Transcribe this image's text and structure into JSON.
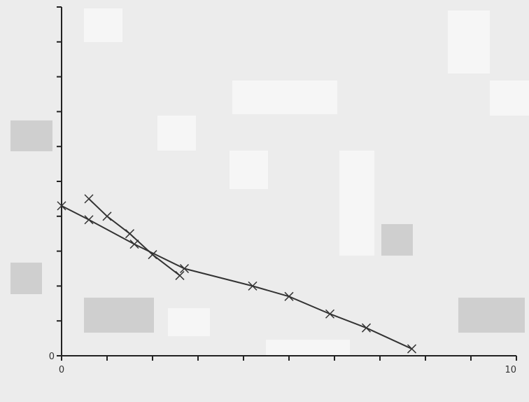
{
  "chart_data": {
    "type": "line",
    "title": "",
    "xlabel": "",
    "ylabel": "",
    "xlim": [
      0,
      10
    ],
    "ylim": [
      0,
      10
    ],
    "x_ticks": [
      "0",
      "",
      "",
      "",
      "",
      "",
      "",
      "",
      "",
      "",
      "10"
    ],
    "y_ticks": [
      "0",
      "",
      "",
      "",
      "",
      "",
      "",
      "",
      "",
      "",
      ""
    ],
    "grid": false,
    "legend": "none",
    "series": [
      {
        "style": "line with markers",
        "color": "#333333",
        "x": [
          0,
          0.6,
          1.6,
          2.7,
          4.2,
          5.0,
          5.9,
          6.7,
          7.7
        ],
        "y": [
          4.3,
          3.9,
          3.2,
          2.5,
          2.0,
          1.7,
          1.2,
          0.8,
          0.2
        ]
      },
      {
        "style": "line with markers",
        "color": "#333333",
        "x": [
          0.6,
          1.0,
          1.5,
          2.0,
          2.6
        ],
        "y": [
          4.5,
          4.0,
          3.5,
          2.9,
          2.3
        ]
      }
    ],
    "colors": {
      "axis": "#222222",
      "line": "#333333",
      "background": "#ececec"
    }
  }
}
